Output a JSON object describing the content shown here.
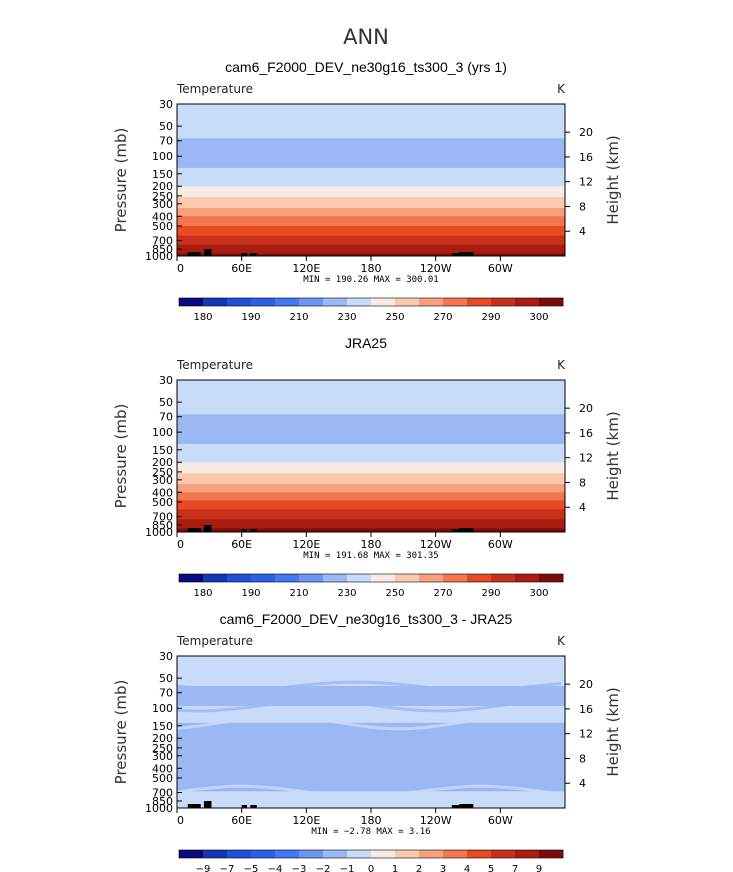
{
  "figure": {
    "title": "ANN"
  },
  "chart_data": [
    {
      "type": "heatmap",
      "title": "cam6_F2000_DEV_ne30g16_ts300_3 (yrs 1)",
      "field_label": "Temperature",
      "units": "K",
      "ylabel": "Pressure (mb)",
      "ylabel_right": "Height (km)",
      "x_ticks": [
        "0",
        "60E",
        "120E",
        "180",
        "120W",
        "60W"
      ],
      "x_tick_lons": [
        0,
        60,
        120,
        180,
        240,
        300
      ],
      "xlim": [
        0,
        360
      ],
      "y_ticks": [
        30,
        50,
        70,
        100,
        150,
        200,
        250,
        300,
        400,
        500,
        700,
        850,
        1000
      ],
      "ylim": [
        1000,
        30
      ],
      "yscale": "log",
      "height_ticks_km": [
        4,
        8,
        12,
        16,
        20
      ],
      "stats": "MIN = 190.26   MAX = 300.01",
      "min": 190.26,
      "max": 300.01,
      "colorbar_levels": [
        180,
        190,
        210,
        230,
        250,
        270,
        290,
        300
      ],
      "colorbar_colors": [
        "#0a0a7a",
        "#1438b4",
        "#1e50d8",
        "#2860e8",
        "#4478f0",
        "#6b96f2",
        "#9bb8f5",
        "#c8dcfa",
        "#f5ebe4",
        "#fbc9ae",
        "#f7a07e",
        "#f27650",
        "#e84a22",
        "#c9301a",
        "#a81c12",
        "#7a0c0c"
      ],
      "profile": [
        {
          "p": 30,
          "t": 219
        },
        {
          "p": 50,
          "t": 214
        },
        {
          "p": 70,
          "t": 209
        },
        {
          "p": 100,
          "t": 206
        },
        {
          "p": 150,
          "t": 212
        },
        {
          "p": 200,
          "t": 220
        },
        {
          "p": 250,
          "t": 228
        },
        {
          "p": 300,
          "t": 236
        },
        {
          "p": 400,
          "t": 250
        },
        {
          "p": 500,
          "t": 260
        },
        {
          "p": 700,
          "t": 276
        },
        {
          "p": 850,
          "t": 285
        },
        {
          "p": 1000,
          "t": 293
        }
      ]
    },
    {
      "type": "heatmap",
      "title": "JRA25",
      "field_label": "Temperature",
      "units": "K",
      "ylabel": "Pressure (mb)",
      "ylabel_right": "Height (km)",
      "x_ticks": [
        "0",
        "60E",
        "120E",
        "180",
        "120W",
        "60W"
      ],
      "x_tick_lons": [
        0,
        60,
        120,
        180,
        240,
        300
      ],
      "xlim": [
        0,
        360
      ],
      "y_ticks": [
        30,
        50,
        70,
        100,
        150,
        200,
        250,
        300,
        400,
        500,
        700,
        850,
        1000
      ],
      "ylim": [
        1000,
        30
      ],
      "yscale": "log",
      "height_ticks_km": [
        4,
        8,
        12,
        16,
        20
      ],
      "stats": "MIN = 191.68   MAX = 301.35",
      "min": 191.68,
      "max": 301.35,
      "colorbar_levels": [
        180,
        190,
        210,
        230,
        250,
        270,
        290,
        300
      ],
      "colorbar_colors": [
        "#0a0a7a",
        "#1438b4",
        "#1e50d8",
        "#2860e8",
        "#4478f0",
        "#6b96f2",
        "#9bb8f5",
        "#c8dcfa",
        "#f5ebe4",
        "#fbc9ae",
        "#f7a07e",
        "#f27650",
        "#e84a22",
        "#c9301a",
        "#a81c12",
        "#7a0c0c"
      ],
      "profile": [
        {
          "p": 30,
          "t": 220
        },
        {
          "p": 50,
          "t": 215
        },
        {
          "p": 70,
          "t": 209
        },
        {
          "p": 100,
          "t": 206
        },
        {
          "p": 150,
          "t": 212
        },
        {
          "p": 200,
          "t": 220
        },
        {
          "p": 250,
          "t": 228
        },
        {
          "p": 300,
          "t": 236
        },
        {
          "p": 400,
          "t": 250
        },
        {
          "p": 500,
          "t": 261
        },
        {
          "p": 700,
          "t": 277
        },
        {
          "p": 850,
          "t": 286
        },
        {
          "p": 1000,
          "t": 294
        }
      ]
    },
    {
      "type": "heatmap",
      "title": "cam6_F2000_DEV_ne30g16_ts300_3 - JRA25",
      "field_label": "Temperature",
      "units": "K",
      "ylabel": "Pressure (mb)",
      "ylabel_right": "Height (km)",
      "x_ticks": [
        "0",
        "60E",
        "120E",
        "180",
        "120W",
        "60W"
      ],
      "x_tick_lons": [
        0,
        60,
        120,
        180,
        240,
        300
      ],
      "xlim": [
        0,
        360
      ],
      "y_ticks": [
        30,
        50,
        70,
        100,
        150,
        200,
        250,
        300,
        400,
        500,
        700,
        850,
        1000
      ],
      "ylim": [
        1000,
        30
      ],
      "yscale": "log",
      "height_ticks_km": [
        4,
        8,
        12,
        16,
        20
      ],
      "stats": "MIN =  −2.78   MAX =    3.16",
      "min": -2.78,
      "max": 3.16,
      "colorbar_levels": [
        "−9",
        "−7",
        "−5",
        "−4",
        "−3",
        "−2",
        "−1",
        "0",
        "1",
        "2",
        "3",
        "4",
        "5",
        "7",
        "9"
      ],
      "colorbar_colors": [
        "#0a0a7a",
        "#1438b4",
        "#1e50d8",
        "#2860e8",
        "#4478f0",
        "#6b96f2",
        "#9bb8f5",
        "#c8dcfa",
        "#f5ebe4",
        "#fbc9ae",
        "#f7a07e",
        "#f27650",
        "#e84a22",
        "#c9301a",
        "#a81c12",
        "#7a0c0c"
      ],
      "bands": [
        {
          "p_top": 30,
          "p_bot": 60,
          "diff": -0.5
        },
        {
          "p_top": 60,
          "p_bot": 95,
          "diff": -1.5
        },
        {
          "p_top": 95,
          "p_bot": 140,
          "diff": -0.5
        },
        {
          "p_top": 140,
          "p_bot": 680,
          "diff": -1.5
        },
        {
          "p_top": 680,
          "p_bot": 1000,
          "diff": -0.5
        }
      ]
    }
  ]
}
